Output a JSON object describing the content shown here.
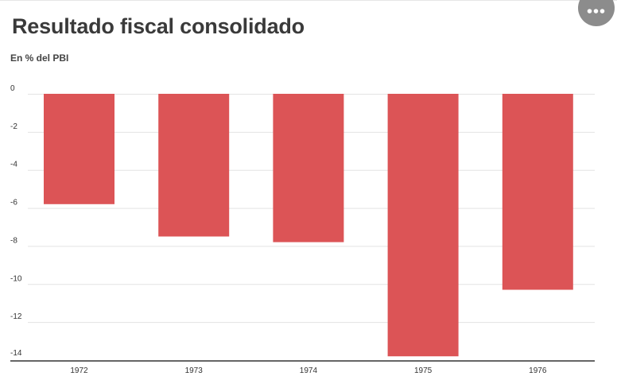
{
  "title": "Resultado fiscal consolidado",
  "subtitle": "En % del PBI",
  "menu": {
    "icon": "more-horizontal-icon"
  },
  "colors": {
    "bar": "#dc5456",
    "grid": "#e3e3e3",
    "axis": "#333333",
    "tick_text": "#333333"
  },
  "chart_data": {
    "type": "bar",
    "categories": [
      "1972",
      "1973",
      "1974",
      "1975",
      "1976"
    ],
    "values": [
      -5.8,
      -7.5,
      -7.8,
      -13.8,
      -10.3
    ],
    "title": "Resultado fiscal consolidado",
    "subtitle": "En % del PBI",
    "xlabel": "",
    "ylabel": "",
    "ylim": [
      -14,
      0
    ],
    "yticks": [
      0,
      -2,
      -4,
      -6,
      -8,
      -10,
      -12,
      -14
    ],
    "grid": true,
    "legend": "none"
  }
}
